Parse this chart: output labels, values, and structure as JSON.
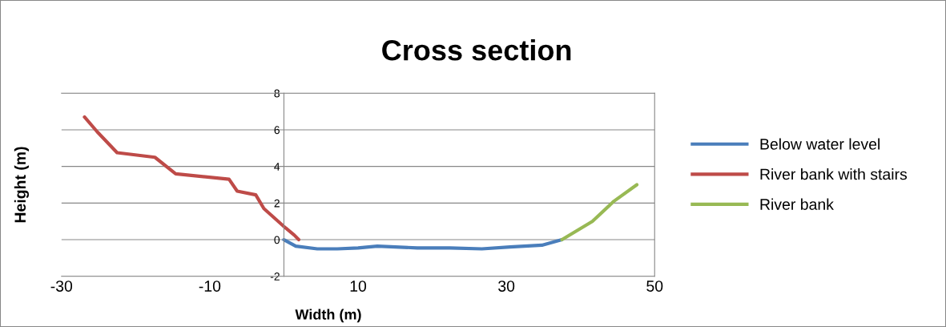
{
  "chart_data": {
    "type": "line",
    "title": "Cross section",
    "xlabel": "Width (m)",
    "ylabel": "Height (m)",
    "xlim": [
      -30,
      50
    ],
    "xticks": [
      -30,
      -10,
      10,
      30,
      50
    ],
    "ylim": [
      -2,
      8
    ],
    "yticks": [
      -2,
      0,
      2,
      4,
      6,
      8
    ],
    "grid": "y",
    "legend": "right",
    "marker": "none",
    "line_style": "solid",
    "series": [
      {
        "name": "Below water level",
        "color": "#4a7ebb",
        "x": [
          0,
          1.6,
          4.5,
          7.2,
          10,
          12.6,
          18,
          22.4,
          26.7,
          30.5,
          34.8,
          37.5
        ],
        "values": [
          0,
          -0.35,
          -0.5,
          -0.5,
          -0.45,
          -0.35,
          -0.45,
          -0.45,
          -0.5,
          -0.4,
          -0.3,
          0
        ]
      },
      {
        "name": "River bank with stairs",
        "color": "#be4b48",
        "x": [
          -26.9,
          -25.2,
          -22.5,
          -17.4,
          -14.6,
          -7.4,
          -6.3,
          -3.8,
          -2.7,
          0.2,
          1.4,
          2.0
        ],
        "values": [
          6.7,
          5.9,
          4.75,
          4.5,
          3.6,
          3.3,
          2.65,
          2.45,
          1.7,
          0.65,
          0.25,
          0
        ]
      },
      {
        "name": "River bank",
        "color": "#98b954",
        "x": [
          37.5,
          41.6,
          44.5,
          47.6
        ],
        "values": [
          0,
          1.0,
          2.1,
          3.0
        ]
      }
    ]
  }
}
